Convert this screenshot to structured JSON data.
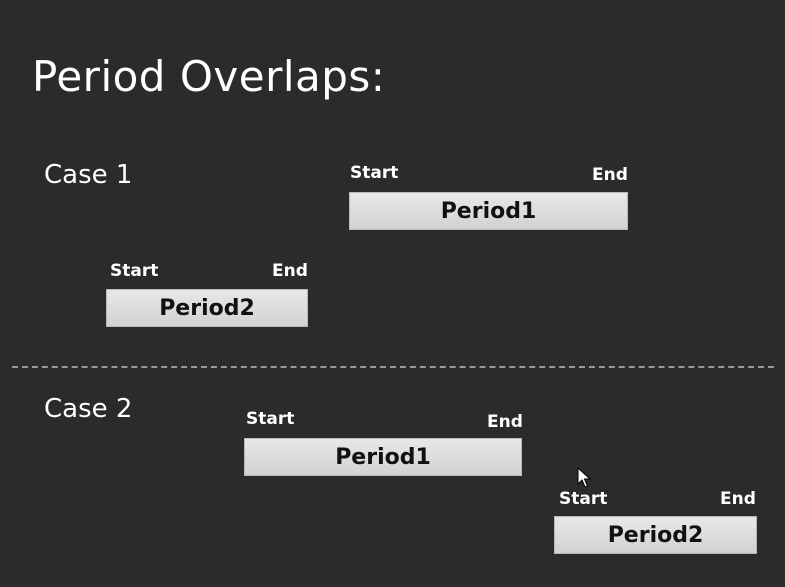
{
  "title": "Period Overlaps:",
  "cases": [
    {
      "label": "Case 1",
      "periods": [
        {
          "name": "Period1",
          "start_label": "Start",
          "end_label": "End"
        },
        {
          "name": "Period2",
          "start_label": "Start",
          "end_label": "End"
        }
      ]
    },
    {
      "label": "Case 2",
      "periods": [
        {
          "name": "Period1",
          "start_label": "Start",
          "end_label": "End"
        },
        {
          "name": "Period2",
          "start_label": "Start",
          "end_label": "End"
        }
      ]
    }
  ],
  "colors": {
    "background": "#2b2b2b",
    "bar_fill": "#d9d9d9",
    "text": "#ffffff",
    "bar_text": "#111111",
    "divider": "#9a9a9a"
  }
}
